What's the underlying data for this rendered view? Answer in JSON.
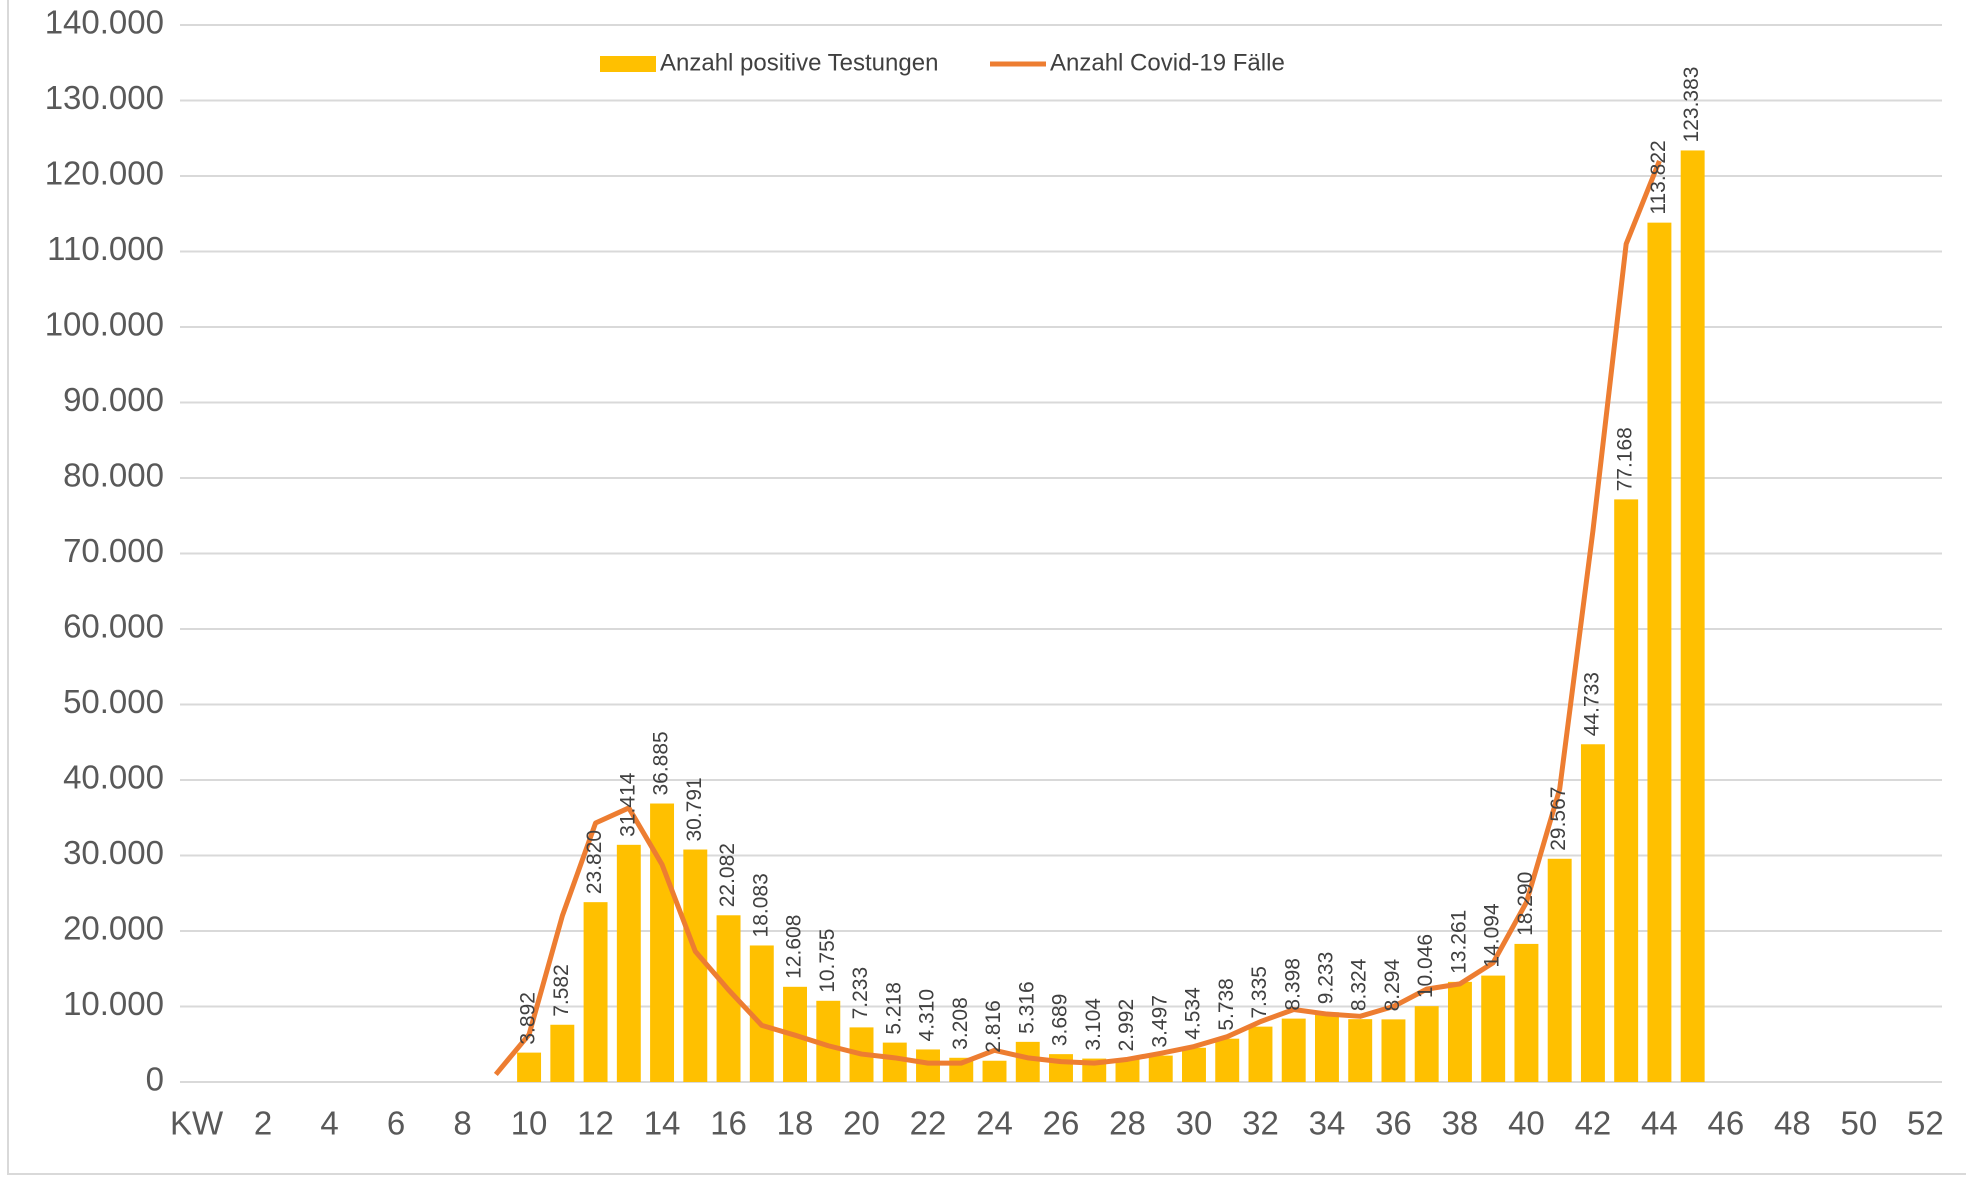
{
  "chart_data": {
    "type": "combo",
    "categories": [
      "KW",
      null,
      "2",
      null,
      "4",
      null,
      "6",
      null,
      "8",
      null,
      "10",
      null,
      "12",
      null,
      "14",
      null,
      "16",
      null,
      "18",
      null,
      "20",
      null,
      "22",
      null,
      "24",
      null,
      "26",
      null,
      "28",
      null,
      "30",
      null,
      "32",
      null,
      "34",
      null,
      "36",
      null,
      "38",
      null,
      "40",
      null,
      "42",
      null,
      "44",
      null,
      "46",
      null,
      "48",
      null,
      "50",
      null,
      "52"
    ],
    "series": [
      {
        "name": "Anzahl positive Testungen",
        "type": "bar",
        "color": "#FFC000",
        "values": [
          null,
          null,
          null,
          null,
          null,
          null,
          null,
          null,
          null,
          null,
          3892,
          7582,
          23820,
          31414,
          36885,
          30791,
          22082,
          18083,
          12608,
          10755,
          7233,
          5218,
          4310,
          3208,
          2816,
          5316,
          3689,
          3104,
          2992,
          3497,
          4534,
          5738,
          7335,
          8398,
          9233,
          8324,
          8294,
          10046,
          13261,
          14094,
          18290,
          29567,
          44733,
          77168,
          113822,
          123383,
          null,
          null,
          null,
          null,
          null,
          null,
          null
        ],
        "value_labels": [
          null,
          null,
          null,
          null,
          null,
          null,
          null,
          null,
          null,
          null,
          "3.892",
          "7.582",
          "23.820",
          "31.414",
          "36.885",
          "30.791",
          "22.082",
          "18.083",
          "12.608",
          "10.755",
          "7.233",
          "5.218",
          "4.310",
          "3.208",
          "2.816",
          "5.316",
          "3.689",
          "3.104",
          "2.992",
          "3.497",
          "4.534",
          "5.738",
          "7.335",
          "8.398",
          "9.233",
          "8.324",
          "8.294",
          "10.046",
          "13.261",
          "14.094",
          "18.290",
          "29.567",
          "44.733",
          "77.168",
          "113.822",
          "123.383",
          null,
          null,
          null,
          null,
          null,
          null,
          null
        ]
      },
      {
        "name": "Anzahl Covid-19 Fälle",
        "type": "line",
        "color": "#ED7D31",
        "values": [
          null,
          null,
          null,
          null,
          null,
          null,
          null,
          null,
          null,
          1000,
          6300,
          22000,
          34300,
          36300,
          28800,
          17300,
          12200,
          7500,
          6200,
          4800,
          3700,
          3200,
          2500,
          2500,
          4200,
          3200,
          2700,
          2500,
          3000,
          3800,
          4700,
          6000,
          8000,
          9600,
          9000,
          8700,
          10000,
          12300,
          13000,
          15800,
          23800,
          38800,
          73000,
          111000,
          122000,
          null,
          null,
          null,
          null,
          null,
          null,
          null,
          null
        ]
      }
    ],
    "ylim": [
      0,
      140000
    ],
    "yticks": [
      0,
      {
        "value": 10000,
        "label": "10.000"
      },
      {
        "value": 20000,
        "label": "20.000"
      },
      {
        "value": 30000,
        "label": "30.000"
      },
      {
        "value": 40000,
        "label": "40.000"
      },
      {
        "value": 50000,
        "label": "50.000"
      },
      {
        "value": 60000,
        "label": "60.000"
      },
      {
        "value": 70000,
        "label": "70.000"
      },
      {
        "value": 80000,
        "label": "80.000"
      },
      {
        "value": 90000,
        "label": "90.000"
      },
      {
        "value": 100000,
        "label": "100.000"
      },
      {
        "value": 110000,
        "label": "110.000"
      },
      {
        "value": 120000,
        "label": "120.000"
      },
      {
        "value": 130000,
        "label": "130.000"
      },
      {
        "value": 140000,
        "label": "140.000"
      }
    ],
    "grid": true,
    "legend": "top"
  }
}
